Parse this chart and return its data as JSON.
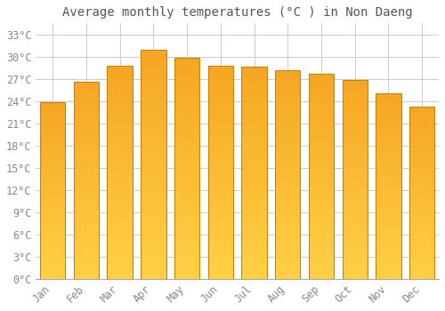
{
  "title": "Average monthly temperatures (°C ) in Non Daeng",
  "months": [
    "Jan",
    "Feb",
    "Mar",
    "Apr",
    "May",
    "Jun",
    "Jul",
    "Aug",
    "Sep",
    "Oct",
    "Nov",
    "Dec"
  ],
  "values": [
    23.8,
    26.6,
    28.8,
    30.9,
    29.8,
    28.8,
    28.6,
    28.2,
    27.7,
    26.9,
    25.0,
    23.2
  ],
  "bar_color_top": "#F5A623",
  "bar_color_bottom": "#FFD044",
  "bar_edge_color": "#C8830A",
  "background_color": "#FFFFFF",
  "plot_bg_color": "#FFFFFF",
  "grid_color": "#CCCCCC",
  "title_color": "#555555",
  "tick_color": "#888888",
  "ylabel_ticks": [
    0,
    3,
    6,
    9,
    12,
    15,
    18,
    21,
    24,
    27,
    30,
    33
  ],
  "ylim": [
    0,
    34.5
  ],
  "title_fontsize": 10,
  "tick_fontsize": 8.5,
  "font_family": "monospace"
}
